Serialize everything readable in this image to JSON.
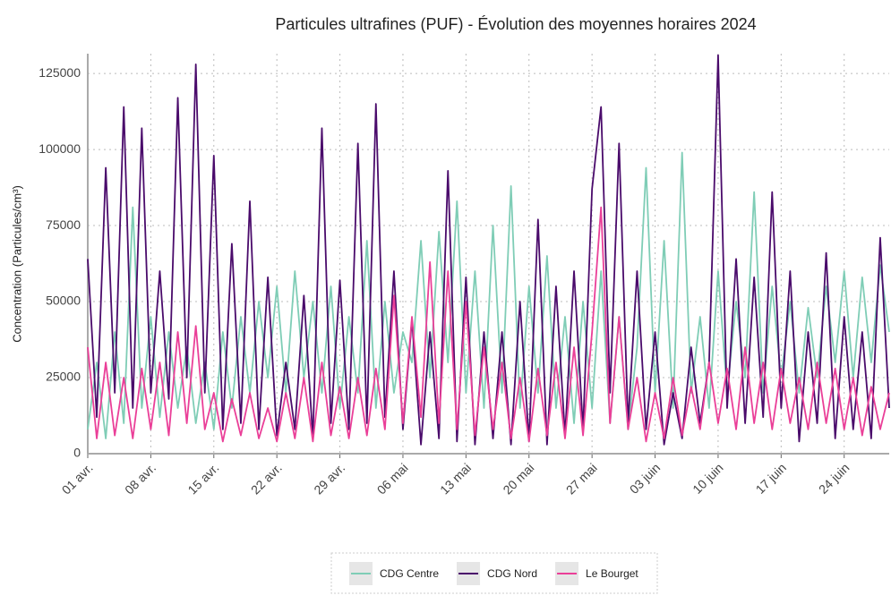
{
  "chart_data": {
    "type": "line",
    "title": "Particules ultrafines (PUF)  - Évolution des moyennes horaires 2024",
    "y_label": "Concentration (Particules/cm³)",
    "x": [
      0,
      1,
      2,
      3,
      4,
      5,
      6,
      7,
      8,
      9,
      10,
      11,
      12,
      13,
      14,
      15,
      16,
      17,
      18,
      19,
      20,
      21,
      22,
      23,
      24,
      25,
      26,
      27,
      28,
      29,
      30,
      31,
      32,
      33,
      34,
      35,
      36,
      37,
      38,
      39,
      40,
      41,
      42,
      43,
      44,
      45,
      46,
      47,
      48,
      49,
      50,
      51,
      52,
      53,
      54,
      55,
      56,
      57,
      58,
      59,
      60,
      61,
      62,
      63,
      64,
      65,
      66,
      67,
      68,
      69,
      70,
      71,
      72,
      73,
      74,
      75,
      76,
      77,
      78,
      79,
      80,
      81,
      82,
      83,
      84,
      85,
      86,
      87,
      88,
      89
    ],
    "series": [
      {
        "name": "CDG Centre",
        "color": "#7fcdb6",
        "values": [
          8000,
          30000,
          5000,
          40000,
          10000,
          81000,
          15000,
          45000,
          12000,
          40000,
          15000,
          35000,
          10000,
          30000,
          8000,
          40000,
          15000,
          45000,
          20000,
          50000,
          25000,
          55000,
          20000,
          60000,
          25000,
          50000,
          20000,
          55000,
          15000,
          45000,
          20000,
          70000,
          15000,
          50000,
          20000,
          40000,
          30000,
          70000,
          25000,
          73000,
          30000,
          83000,
          20000,
          60000,
          15000,
          75000,
          20000,
          88000,
          15000,
          55000,
          20000,
          65000,
          15000,
          45000,
          10000,
          50000,
          15000,
          60000,
          10000,
          45000,
          8000,
          35000,
          94000,
          20000,
          70000,
          15000,
          99000,
          20000,
          45000,
          15000,
          60000,
          20000,
          50000,
          25000,
          86000,
          20000,
          55000,
          25000,
          50000,
          20000,
          48000,
          25000,
          55000,
          30000,
          60000,
          25000,
          58000,
          30000,
          62000,
          40000
        ]
      },
      {
        "name": "CDG Nord",
        "color": "#4a0b6b",
        "values": [
          64000,
          12000,
          94000,
          20000,
          114000,
          15000,
          107000,
          20000,
          60000,
          18000,
          117000,
          25000,
          128000,
          20000,
          98000,
          8000,
          69000,
          10000,
          83000,
          8000,
          58000,
          6000,
          30000,
          8000,
          52000,
          5000,
          107000,
          10000,
          57000,
          8000,
          102000,
          10000,
          115000,
          12000,
          60000,
          8000,
          44000,
          3000,
          40000,
          5000,
          93000,
          4000,
          58000,
          3000,
          40000,
          5000,
          40000,
          3000,
          50000,
          4000,
          77000,
          3000,
          55000,
          6000,
          60000,
          8000,
          87000,
          114000,
          20000,
          102000,
          10000,
          60000,
          8000,
          40000,
          3000,
          20000,
          5000,
          35000,
          10000,
          30000,
          131000,
          15000,
          64000,
          10000,
          58000,
          12000,
          86000,
          15000,
          60000,
          4000,
          40000,
          10000,
          66000,
          5000,
          45000,
          8000,
          40000,
          5000,
          71000,
          15000
        ]
      },
      {
        "name": "Le Bourget",
        "color": "#ea3f98",
        "values": [
          35000,
          5000,
          30000,
          6000,
          25000,
          5000,
          28000,
          8000,
          30000,
          6000,
          40000,
          10000,
          42000,
          8000,
          20000,
          4000,
          18000,
          6000,
          20000,
          5000,
          15000,
          4000,
          20000,
          5000,
          25000,
          4000,
          30000,
          6000,
          22000,
          5000,
          25000,
          6000,
          28000,
          8000,
          52000,
          10000,
          45000,
          12000,
          63000,
          10000,
          60000,
          8000,
          50000,
          6000,
          35000,
          8000,
          30000,
          5000,
          25000,
          4000,
          28000,
          6000,
          30000,
          5000,
          35000,
          6000,
          40000,
          81000,
          10000,
          45000,
          8000,
          25000,
          4000,
          20000,
          5000,
          25000,
          6000,
          22000,
          8000,
          30000,
          10000,
          28000,
          8000,
          35000,
          10000,
          30000,
          8000,
          28000,
          10000,
          25000,
          8000,
          30000,
          10000,
          28000,
          8000,
          25000,
          6000,
          22000,
          8000,
          20000
        ]
      }
    ],
    "xlim": [
      0,
      89
    ],
    "xticks": [
      {
        "value": 0,
        "label": "01 avr."
      },
      {
        "value": 7,
        "label": "08 avr."
      },
      {
        "value": 14,
        "label": "15 avr."
      },
      {
        "value": 21,
        "label": "22 avr."
      },
      {
        "value": 28,
        "label": "29 avr."
      },
      {
        "value": 35,
        "label": "06 mai"
      },
      {
        "value": 42,
        "label": "13 mai"
      },
      {
        "value": 49,
        "label": "20 mai"
      },
      {
        "value": 56,
        "label": "27 mai"
      },
      {
        "value": 63,
        "label": "03 juin"
      },
      {
        "value": 70,
        "label": "10 juin"
      },
      {
        "value": 77,
        "label": "17 juin"
      },
      {
        "value": 84,
        "label": "24 juin"
      }
    ],
    "ylim": [
      0,
      131500
    ],
    "yticks": [
      0,
      25000,
      50000,
      75000,
      100000,
      125000
    ],
    "grid": true,
    "legend": "bottom"
  }
}
